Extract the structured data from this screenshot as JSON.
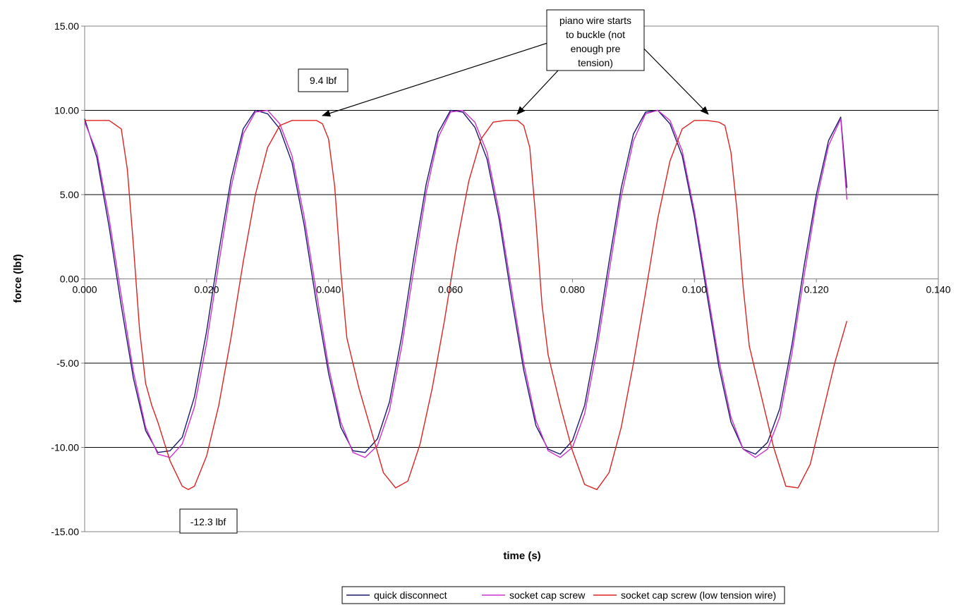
{
  "chart_data": {
    "type": "line",
    "title": "",
    "xlabel": "time (s)",
    "ylabel": "force (lbf)",
    "xlim": [
      0,
      0.14
    ],
    "ylim": [
      -15,
      15
    ],
    "x_ticks": [
      "0.000",
      "0.020",
      "0.040",
      "0.060",
      "0.080",
      "0.100",
      "0.120",
      "0.140"
    ],
    "y_ticks": [
      "15.00",
      "10.00",
      "5.00",
      "0.00",
      "-5.00",
      "-10.00",
      "-15.00"
    ],
    "grid": "horizontal major gridlines",
    "legend_position": "bottom",
    "series": [
      {
        "name": "quick disconnect",
        "color": "#1a1a6e",
        "x": [
          0.0,
          0.002,
          0.004,
          0.006,
          0.008,
          0.01,
          0.012,
          0.014,
          0.016,
          0.018,
          0.02,
          0.022,
          0.024,
          0.026,
          0.028,
          0.03,
          0.032,
          0.034,
          0.036,
          0.038,
          0.04,
          0.042,
          0.044,
          0.046,
          0.048,
          0.05,
          0.052,
          0.054,
          0.056,
          0.058,
          0.06,
          0.062,
          0.064,
          0.066,
          0.068,
          0.07,
          0.072,
          0.074,
          0.076,
          0.078,
          0.08,
          0.082,
          0.084,
          0.086,
          0.088,
          0.09,
          0.092,
          0.094,
          0.096,
          0.098,
          0.1,
          0.102,
          0.104,
          0.106,
          0.108,
          0.11,
          0.112,
          0.114,
          0.116,
          0.118,
          0.12,
          0.122,
          0.124,
          0.125
        ],
        "y": [
          9.5,
          7.2,
          3.1,
          -1.6,
          -5.9,
          -9.0,
          -10.3,
          -10.2,
          -9.4,
          -7.0,
          -3.1,
          1.6,
          5.9,
          8.9,
          10.0,
          9.8,
          8.9,
          6.9,
          3.2,
          -1.4,
          -5.6,
          -8.8,
          -10.2,
          -10.3,
          -9.5,
          -7.3,
          -3.4,
          1.3,
          5.6,
          8.7,
          10.0,
          9.9,
          9.0,
          7.1,
          3.5,
          -1.1,
          -5.4,
          -8.7,
          -10.1,
          -10.4,
          -9.6,
          -7.5,
          -3.6,
          1.0,
          5.4,
          8.6,
          9.9,
          10.0,
          9.2,
          7.3,
          3.7,
          -0.8,
          -5.2,
          -8.5,
          -10.1,
          -10.4,
          -9.7,
          -7.7,
          -3.9,
          0.8,
          5.0,
          8.2,
          9.6,
          5.4
        ]
      },
      {
        "name": "socket cap screw",
        "color": "#cc33cc",
        "x": [
          0.0,
          0.002,
          0.004,
          0.006,
          0.008,
          0.01,
          0.012,
          0.014,
          0.016,
          0.018,
          0.02,
          0.022,
          0.024,
          0.026,
          0.028,
          0.03,
          0.032,
          0.034,
          0.036,
          0.038,
          0.04,
          0.042,
          0.044,
          0.046,
          0.048,
          0.05,
          0.052,
          0.054,
          0.056,
          0.058,
          0.06,
          0.062,
          0.064,
          0.066,
          0.068,
          0.07,
          0.072,
          0.074,
          0.076,
          0.078,
          0.08,
          0.082,
          0.084,
          0.086,
          0.088,
          0.09,
          0.092,
          0.094,
          0.096,
          0.098,
          0.1,
          0.102,
          0.104,
          0.106,
          0.108,
          0.11,
          0.112,
          0.114,
          0.116,
          0.118,
          0.12,
          0.122,
          0.124,
          0.125
        ],
        "y": [
          9.3,
          7.5,
          3.6,
          -1.0,
          -5.5,
          -8.8,
          -10.4,
          -10.6,
          -9.8,
          -7.6,
          -3.8,
          0.9,
          5.4,
          8.6,
          9.9,
          10.0,
          9.2,
          7.3,
          3.7,
          -0.8,
          -5.2,
          -8.5,
          -10.3,
          -10.6,
          -9.9,
          -7.8,
          -4.0,
          0.6,
          5.1,
          8.4,
          9.9,
          10.0,
          9.3,
          7.5,
          3.9,
          -0.6,
          -5.0,
          -8.4,
          -10.2,
          -10.6,
          -10.0,
          -8.0,
          -4.2,
          0.4,
          4.9,
          8.2,
          9.8,
          10.0,
          9.4,
          7.6,
          4.0,
          -0.4,
          -4.8,
          -8.2,
          -10.1,
          -10.6,
          -10.1,
          -8.2,
          -4.4,
          0.2,
          4.6,
          7.9,
          9.5,
          4.7
        ]
      },
      {
        "name": "socket cap screw (low tension wire)",
        "color": "#dd2222",
        "x": [
          0.0,
          0.004,
          0.006,
          0.007,
          0.008,
          0.009,
          0.01,
          0.011,
          0.012,
          0.014,
          0.016,
          0.017,
          0.018,
          0.02,
          0.022,
          0.024,
          0.026,
          0.028,
          0.03,
          0.032,
          0.034,
          0.036,
          0.038,
          0.039,
          0.04,
          0.041,
          0.042,
          0.043,
          0.045,
          0.047,
          0.049,
          0.051,
          0.053,
          0.055,
          0.057,
          0.059,
          0.061,
          0.063,
          0.065,
          0.067,
          0.069,
          0.071,
          0.072,
          0.073,
          0.074,
          0.075,
          0.076,
          0.078,
          0.08,
          0.082,
          0.084,
          0.086,
          0.088,
          0.09,
          0.092,
          0.094,
          0.096,
          0.098,
          0.1,
          0.102,
          0.104,
          0.105,
          0.106,
          0.107,
          0.108,
          0.109,
          0.111,
          0.113,
          0.115,
          0.117,
          0.119,
          0.121,
          0.123,
          0.125
        ],
        "y": [
          9.4,
          9.4,
          8.9,
          6.5,
          2.0,
          -3.0,
          -6.2,
          -7.5,
          -8.5,
          -10.8,
          -12.3,
          -12.5,
          -12.3,
          -10.5,
          -7.5,
          -3.5,
          1.0,
          5.0,
          7.8,
          9.1,
          9.4,
          9.4,
          9.4,
          9.2,
          8.3,
          5.5,
          0.5,
          -3.5,
          -6.5,
          -9.0,
          -11.5,
          -12.4,
          -12.0,
          -9.8,
          -6.5,
          -2.5,
          2.0,
          5.8,
          8.3,
          9.3,
          9.4,
          9.4,
          9.1,
          7.8,
          3.5,
          -1.5,
          -4.5,
          -7.5,
          -10.2,
          -12.2,
          -12.5,
          -11.5,
          -8.8,
          -5.0,
          -0.8,
          3.6,
          7.0,
          8.9,
          9.4,
          9.4,
          9.3,
          9.1,
          7.5,
          4.0,
          -0.5,
          -4.0,
          -7.0,
          -10.0,
          -12.3,
          -12.4,
          -11.0,
          -8.0,
          -5.0,
          -2.5
        ]
      }
    ],
    "annotations": [
      {
        "id": "max",
        "lines": [
          "9.4 lbf"
        ]
      },
      {
        "id": "min",
        "lines": [
          "-12.3 lbf"
        ]
      },
      {
        "id": "buckle",
        "lines": [
          "piano wire starts",
          "to buckle (not",
          "enough pre",
          "tension)"
        ]
      }
    ]
  }
}
